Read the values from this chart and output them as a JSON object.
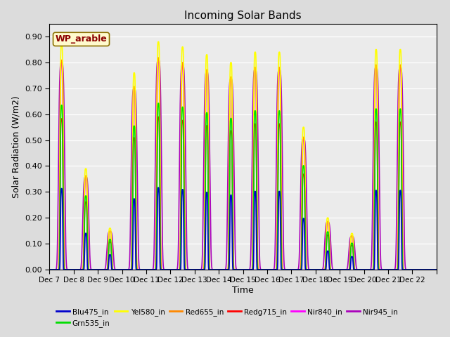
{
  "title": "Incoming Solar Bands",
  "xlabel": "Time",
  "ylabel": "Solar Radiation (W/m2)",
  "ylim": [
    0.0,
    0.95
  ],
  "yticks": [
    0.0,
    0.1,
    0.2,
    0.3,
    0.4,
    0.5,
    0.6,
    0.7,
    0.8,
    0.9
  ],
  "annotation": "WP_arable",
  "annotation_color": "#8B0000",
  "annotation_bg": "#FFFACD",
  "series_colors": {
    "Blu475_in": "#0000CC",
    "Grn535_in": "#00DD00",
    "Yel580_in": "#FFFF00",
    "Red655_in": "#FF8800",
    "Redg715_in": "#FF0000",
    "Nir840_in": "#FF00FF",
    "Nir945_in": "#AA00BB"
  },
  "legend_order": [
    "Blu475_in",
    "Grn535_in",
    "Yel580_in",
    "Red655_in",
    "Redg715_in",
    "Nir840_in",
    "Nir945_in"
  ],
  "x_tick_labels": [
    "Dec 7",
    "Dec 8",
    "Dec 9",
    "Dec 10",
    "Dec 11",
    "Dec 12",
    "Dec 13",
    "Dec 14",
    "Dec 15",
    "Dec 16",
    "Dec 17",
    "Dec 18",
    "Dec 19",
    "Dec 20",
    "Dec 21",
    "Dec 22"
  ],
  "num_days": 16,
  "points_per_day": 288,
  "day_peaks": [
    0.87,
    0.39,
    0.16,
    0.76,
    0.88,
    0.86,
    0.83,
    0.8,
    0.84,
    0.84,
    0.55,
    0.2,
    0.14,
    0.85,
    0.85,
    0.0
  ],
  "scale_factors": {
    "Blu475_in": 0.36,
    "Grn535_in": 0.73,
    "Yel580_in": 1.0,
    "Red655_in": 0.93,
    "Redg715_in": 0.67,
    "Nir840_in": 0.92,
    "Nir945_in": 0.92
  },
  "peak_widths": {
    "Blu475_in": 0.045,
    "Grn535_in": 0.055,
    "Yel580_in": 0.065,
    "Red655_in": 0.065,
    "Redg715_in": 0.06,
    "Nir840_in": 0.06,
    "Nir945_in": 0.12
  },
  "background_color": "#DCDCDC",
  "axes_bg": "#EBEBEB",
  "grid_color": "#FFFFFF"
}
